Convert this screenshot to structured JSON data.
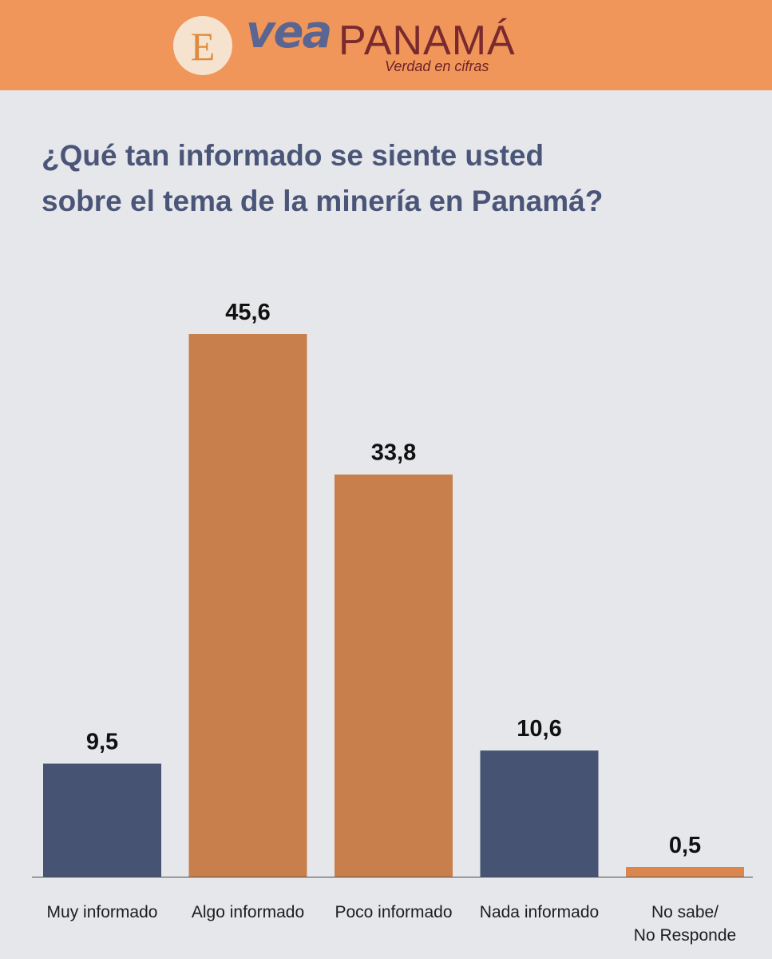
{
  "header": {
    "logo_letter": "E",
    "brand_vea": "vea",
    "brand_panama": "PANAMÁ",
    "tagline": "Verdad en cifras",
    "background_color": "#f0965a"
  },
  "chart_data": {
    "type": "bar",
    "title_lines": [
      "¿Qué tan informado se siente usted",
      "sobre el tema de la minería en Panamá?"
    ],
    "categories": [
      [
        "Muy informado"
      ],
      [
        "Algo informado"
      ],
      [
        "Poco informado"
      ],
      [
        "Nada informado"
      ],
      [
        "No sabe/",
        "No Responde"
      ]
    ],
    "values": [
      9.5,
      45.6,
      33.8,
      10.6,
      0.5
    ],
    "value_labels": [
      "9,5",
      "45,6",
      "33,8",
      "10,6",
      "0,5"
    ],
    "bar_colors": [
      "#465373",
      "#c97f4c",
      "#c97f4c",
      "#465373",
      "#d9874e"
    ],
    "xlabel": "",
    "ylabel": "",
    "ylim": [
      0,
      45.6
    ],
    "grid": false,
    "legend": "none"
  }
}
